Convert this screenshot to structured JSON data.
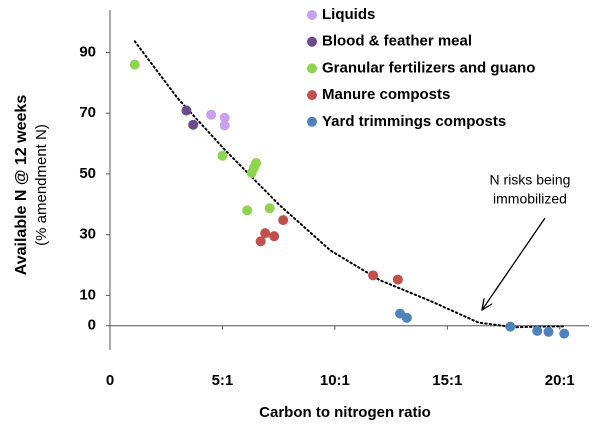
{
  "chart_data": {
    "type": "scatter",
    "ylabel": "Available N @ 12 weeks",
    "ylabel_sub": "(% amendment N)",
    "xlabel": "Carbon to nitrogen ratio",
    "xlim": [
      0,
      21.3
    ],
    "ylim": [
      -8,
      104
    ],
    "xticks": [
      0,
      {
        "value": 5,
        "label": "5:1"
      },
      {
        "value": 10,
        "label": "10:1"
      },
      {
        "value": 15,
        "label": "15:1"
      },
      {
        "value": 20,
        "label": "20:1"
      }
    ],
    "yticks": [
      0,
      10,
      30,
      50,
      70,
      90
    ],
    "grid": false,
    "legend": "top-right",
    "series": [
      {
        "name": "Liquids",
        "color": "#c9a0f0",
        "x": [
          4.5,
          5.1,
          5.1
        ],
        "values": [
          69.5,
          68.5,
          66
        ]
      },
      {
        "name": "Blood & feather meal",
        "color": "#6a4c8c",
        "x": [
          3.4,
          3.7
        ],
        "values": [
          70.9,
          66.2
        ]
      },
      {
        "name": "Granular fertilizers and guano",
        "color": "#8ed44e",
        "x": [
          1.1,
          5.0,
          6.4,
          6.5,
          6.3,
          6.1,
          7.1
        ],
        "values": [
          86,
          56,
          52,
          53.6,
          50.3,
          38,
          38.7
        ]
      },
      {
        "name": "Manure composts",
        "color": "#c0504d",
        "x": [
          7.7,
          6.7,
          6.9,
          7.3,
          11.7,
          12.8
        ],
        "values": [
          34.8,
          27.8,
          30.5,
          29.5,
          16.6,
          15.2
        ]
      },
      {
        "name": "Yard trimmings composts",
        "color": "#4f81bd",
        "x": [
          12.9,
          13.2,
          17.8,
          19.0,
          19.5,
          20.2
        ],
        "values": [
          4,
          2.6,
          -0.3,
          -1.7,
          -2,
          -2.6
        ]
      }
    ],
    "trendline": {
      "x": [
        1.1,
        3,
        5.1,
        7.5,
        9.8,
        12,
        14.2,
        16.4,
        18,
        19.1,
        20.2
      ],
      "values": [
        93.7,
        75,
        58,
        40,
        24.8,
        15,
        8.3,
        1,
        -0.5,
        -0.3,
        -0.2
      ]
    },
    "annotation_lines": [
      "N risks being",
      "immobilized"
    ]
  }
}
